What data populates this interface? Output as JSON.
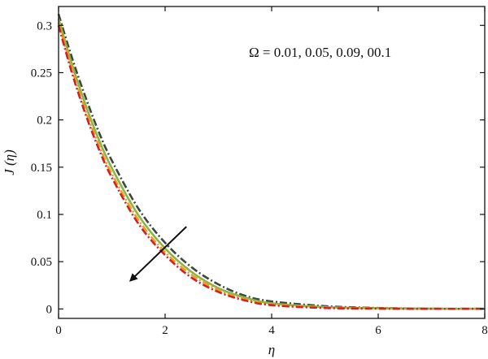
{
  "chart_data": {
    "type": "line",
    "title": "",
    "xlabel": "η",
    "ylabel": "J (η)",
    "xlim": [
      0,
      8
    ],
    "ylim": [
      -0.01,
      0.32
    ],
    "xticks": [
      0,
      2,
      4,
      6,
      8
    ],
    "yticks": [
      0,
      0.05,
      0.1,
      0.15,
      0.2,
      0.25,
      0.3
    ],
    "xtick_labels": [
      "0",
      "2",
      "4",
      "6",
      "8"
    ],
    "ytick_labels": [
      "0",
      "0.05",
      "0.1",
      "0.15",
      "0.2",
      "0.25",
      "0.3"
    ],
    "annotation": "Ω = 0.01, 0.05, 0.09, 00.1",
    "arrow": {
      "from": [
        2.4,
        0.087
      ],
      "to": [
        1.35,
        0.03
      ],
      "meaning": "increasing Ω"
    },
    "grid": false,
    "series": [
      {
        "color": "#3a4a3a",
        "dash": "dashdot",
        "x": [
          0,
          0.25,
          0.5,
          0.75,
          1,
          1.5,
          2,
          2.5,
          3,
          3.5,
          4,
          5,
          6,
          7,
          8
        ],
        "y": [
          0.312,
          0.266,
          0.225,
          0.188,
          0.157,
          0.106,
          0.07,
          0.044,
          0.026,
          0.014,
          0.008,
          0.003,
          0.001,
          0.0003,
          0.0001
        ]
      },
      {
        "color": "#8fb24a",
        "dash": "solid",
        "x": [
          0,
          0.25,
          0.5,
          0.75,
          1,
          1.5,
          2,
          2.5,
          3,
          3.5,
          4,
          5,
          6,
          7,
          8
        ],
        "y": [
          0.307,
          0.259,
          0.217,
          0.18,
          0.149,
          0.099,
          0.064,
          0.039,
          0.022,
          0.012,
          0.006,
          0.002,
          0.0007,
          0.0002,
          0.0001
        ]
      },
      {
        "color": "#e8a020",
        "dash": "dashdot",
        "x": [
          0,
          0.25,
          0.5,
          0.75,
          1,
          1.5,
          2,
          2.5,
          3,
          3.5,
          4,
          5,
          6,
          7,
          8
        ],
        "y": [
          0.303,
          0.254,
          0.211,
          0.174,
          0.143,
          0.094,
          0.06,
          0.036,
          0.02,
          0.01,
          0.005,
          0.0015,
          0.0005,
          0.0001,
          0.0001
        ]
      },
      {
        "color": "#d42020",
        "dash": "dashdot",
        "x": [
          0,
          0.25,
          0.5,
          0.75,
          1,
          1.5,
          2,
          2.5,
          3,
          3.5,
          4,
          5,
          6,
          7,
          8
        ],
        "y": [
          0.3,
          0.25,
          0.207,
          0.17,
          0.139,
          0.09,
          0.057,
          0.033,
          0.018,
          0.009,
          0.004,
          0.001,
          0.0004,
          0.0001,
          0.0001
        ]
      }
    ]
  }
}
